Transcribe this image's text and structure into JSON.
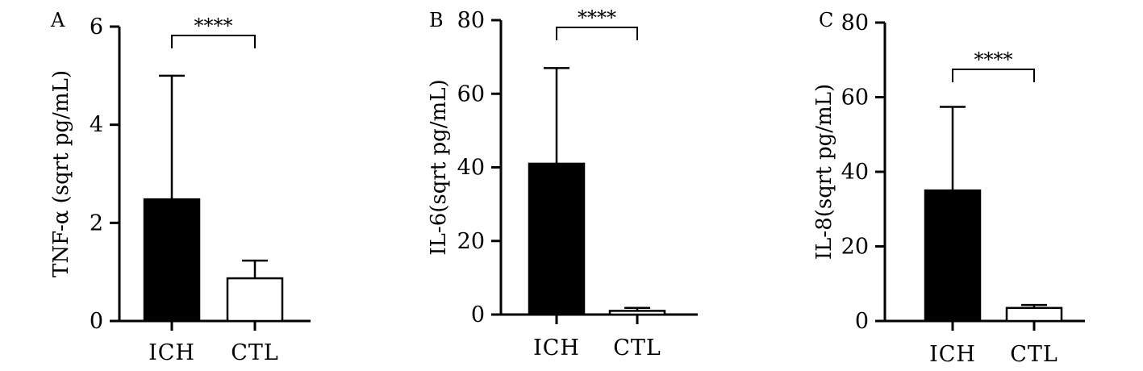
{
  "chart_data": [
    {
      "type": "bar",
      "panel_label": "A",
      "ylabel": "TNF-α (sqrt pg/mL)",
      "categories": [
        "ICH",
        "CTL"
      ],
      "values": [
        2.48,
        0.87
      ],
      "error_upper": [
        5.0,
        1.23
      ],
      "bar_fills": [
        "#000000",
        "#ffffff"
      ],
      "ylim": [
        0,
        6
      ],
      "yticks": [
        0,
        2,
        4,
        6
      ],
      "significance": "****",
      "grid": false
    },
    {
      "type": "bar",
      "panel_label": "B",
      "ylabel": "IL-6(sqrt pg/mL)",
      "categories": [
        "ICH",
        "CTL"
      ],
      "values": [
        41,
        1.0
      ],
      "error_upper": [
        67,
        1.8
      ],
      "bar_fills": [
        "#000000",
        "#ffffff"
      ],
      "ylim": [
        0,
        80
      ],
      "yticks": [
        0,
        20,
        40,
        60,
        80
      ],
      "significance": "****",
      "grid": false
    },
    {
      "type": "bar",
      "panel_label": "C",
      "ylabel": "IL-8(sqrt pg/mL)",
      "categories": [
        "ICH",
        "CTL"
      ],
      "values": [
        35,
        3.5
      ],
      "error_upper": [
        57.4,
        4.3
      ],
      "bar_fills": [
        "#000000",
        "#ffffff"
      ],
      "ylim": [
        0,
        80
      ],
      "yticks": [
        0,
        20,
        40,
        60,
        80
      ],
      "significance": "****",
      "grid": false
    }
  ]
}
